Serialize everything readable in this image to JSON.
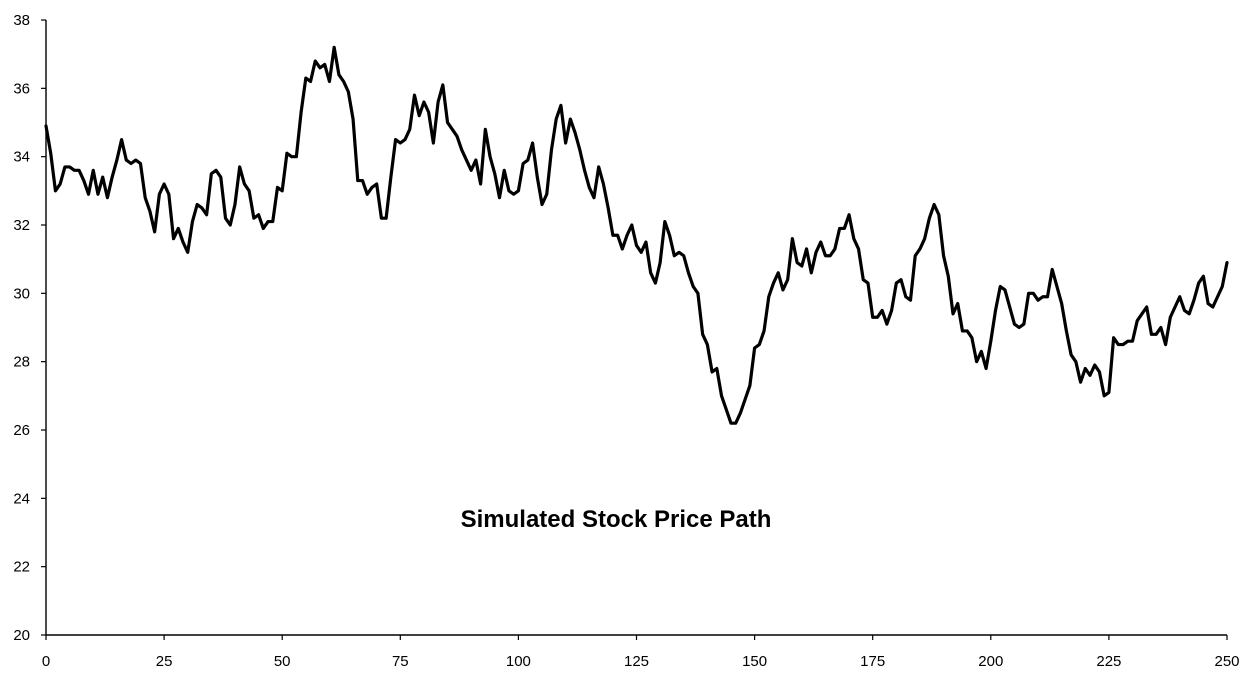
{
  "chart_data": {
    "type": "line",
    "title": "Simulated Stock Price Path",
    "xlabel": "",
    "ylabel": "",
    "xlim": [
      0,
      250
    ],
    "ylim": [
      20,
      38
    ],
    "x_ticks": [
      "0",
      "25",
      "50",
      "75",
      "100",
      "125",
      "150",
      "175",
      "200",
      "225",
      "250"
    ],
    "y_ticks": [
      "20",
      "22",
      "24",
      "26",
      "28",
      "30",
      "32",
      "34",
      "36",
      "38"
    ],
    "grid": false,
    "legend": "none",
    "line_color": "#000000",
    "series": [
      {
        "x": [
          0,
          1,
          2,
          3,
          4,
          5,
          6,
          7,
          8,
          9,
          10,
          11,
          12,
          13,
          14,
          15,
          16,
          17,
          18,
          19,
          20,
          21,
          22,
          23,
          24,
          25,
          26,
          27,
          28,
          29,
          30,
          31,
          32,
          33,
          34,
          35,
          36,
          37,
          38,
          39,
          40,
          41,
          42,
          43,
          44,
          45,
          46,
          47,
          48,
          49,
          50,
          51,
          52,
          53,
          54,
          55,
          56,
          57,
          58,
          59,
          60,
          61,
          62,
          63,
          64,
          65,
          66,
          67,
          68,
          69,
          70,
          71,
          72,
          73,
          74,
          75,
          76,
          77,
          78,
          79,
          80,
          81,
          82,
          83,
          84,
          85,
          86,
          87,
          88,
          89,
          90,
          91,
          92,
          93,
          94,
          95,
          96,
          97,
          98,
          99,
          100,
          101,
          102,
          103,
          104,
          105,
          106,
          107,
          108,
          109,
          110,
          111,
          112,
          113,
          114,
          115,
          116,
          117,
          118,
          119,
          120,
          121,
          122,
          123,
          124,
          125,
          126,
          127,
          128,
          129,
          130,
          131,
          132,
          133,
          134,
          135,
          136,
          137,
          138,
          139,
          140,
          141,
          142,
          143,
          144,
          145,
          146,
          147,
          148,
          149,
          150,
          151,
          152,
          153,
          154,
          155,
          156,
          157,
          158,
          159,
          160,
          161,
          162,
          163,
          164,
          165,
          166,
          167,
          168,
          169,
          170,
          171,
          172,
          173,
          174,
          175,
          176,
          177,
          178,
          179,
          180,
          181,
          182,
          183,
          184,
          185,
          186,
          187,
          188,
          189,
          190,
          191,
          192,
          193,
          194,
          195,
          196,
          197,
          198,
          199,
          200,
          201,
          202,
          203,
          204,
          205,
          206,
          207,
          208,
          209,
          210,
          211,
          212,
          213,
          214,
          215,
          216,
          217,
          218,
          219,
          220,
          221,
          222,
          223,
          224,
          225,
          226,
          227,
          228,
          229,
          230,
          231,
          232,
          233,
          234,
          235,
          236,
          237,
          238,
          239,
          240,
          241,
          242,
          243,
          244,
          245,
          246,
          247,
          248,
          249,
          250
        ],
        "values": [
          34.9,
          34.1,
          33.0,
          33.2,
          33.7,
          33.7,
          33.6,
          33.6,
          33.3,
          32.9,
          33.6,
          32.9,
          33.4,
          32.8,
          33.4,
          33.9,
          34.5,
          33.9,
          33.8,
          33.9,
          33.8,
          32.8,
          32.4,
          31.8,
          32.9,
          33.2,
          32.9,
          31.6,
          31.9,
          31.5,
          31.2,
          32.1,
          32.6,
          32.5,
          32.3,
          33.5,
          33.6,
          33.4,
          32.2,
          32.0,
          32.6,
          33.7,
          33.2,
          33.0,
          32.2,
          32.3,
          31.9,
          32.1,
          32.1,
          33.1,
          33.0,
          34.1,
          34.0,
          34.0,
          35.3,
          36.3,
          36.2,
          36.8,
          36.6,
          36.7,
          36.2,
          37.2,
          36.4,
          36.2,
          35.9,
          35.1,
          33.3,
          33.3,
          32.9,
          33.1,
          33.2,
          32.2,
          32.2,
          33.4,
          34.5,
          34.4,
          34.5,
          34.8,
          35.8,
          35.2,
          35.6,
          35.3,
          34.4,
          35.6,
          36.1,
          35.0,
          34.8,
          34.6,
          34.2,
          33.9,
          33.6,
          33.9,
          33.2,
          34.8,
          34.0,
          33.5,
          32.8,
          33.6,
          33.0,
          32.9,
          33.0,
          33.8,
          33.9,
          34.4,
          33.4,
          32.6,
          32.9,
          34.2,
          35.1,
          35.5,
          34.4,
          35.1,
          34.7,
          34.2,
          33.6,
          33.1,
          32.8,
          33.7,
          33.2,
          32.5,
          31.7,
          31.7,
          31.3,
          31.7,
          32.0,
          31.4,
          31.2,
          31.5,
          30.6,
          30.3,
          30.9,
          32.1,
          31.7,
          31.1,
          31.2,
          31.1,
          30.6,
          30.2,
          30.0,
          28.8,
          28.5,
          27.7,
          27.8,
          27.0,
          26.6,
          26.2,
          26.2,
          26.5,
          26.9,
          27.3,
          28.4,
          28.5,
          28.9,
          29.9,
          30.3,
          30.6,
          30.1,
          30.4,
          31.6,
          30.9,
          30.8,
          31.3,
          30.6,
          31.2,
          31.5,
          31.1,
          31.1,
          31.3,
          31.9,
          31.9,
          32.3,
          31.6,
          31.3,
          30.4,
          30.3,
          29.3,
          29.3,
          29.5,
          29.1,
          29.5,
          30.3,
          30.4,
          29.9,
          29.8,
          31.1,
          31.3,
          31.6,
          32.2,
          32.6,
          32.3,
          31.1,
          30.5,
          29.4,
          29.7,
          28.9,
          28.9,
          28.7,
          28.0,
          28.3,
          27.8,
          28.6,
          29.5,
          30.2,
          30.1,
          29.6,
          29.1,
          29.0,
          29.1,
          30.0,
          30.0,
          29.8,
          29.9,
          29.9,
          30.7,
          30.2,
          29.7,
          28.9,
          28.2,
          28.0,
          27.4,
          27.8,
          27.6,
          27.9,
          27.7,
          27.0,
          27.1,
          28.7,
          28.5,
          28.5,
          28.6,
          28.6,
          29.2,
          29.4,
          29.6,
          28.8,
          28.8,
          29.0,
          28.5,
          29.3,
          29.6,
          29.9,
          29.5,
          29.4,
          29.8,
          30.3,
          30.5,
          29.7,
          29.6,
          29.9,
          30.2,
          30.9
        ]
      }
    ]
  }
}
